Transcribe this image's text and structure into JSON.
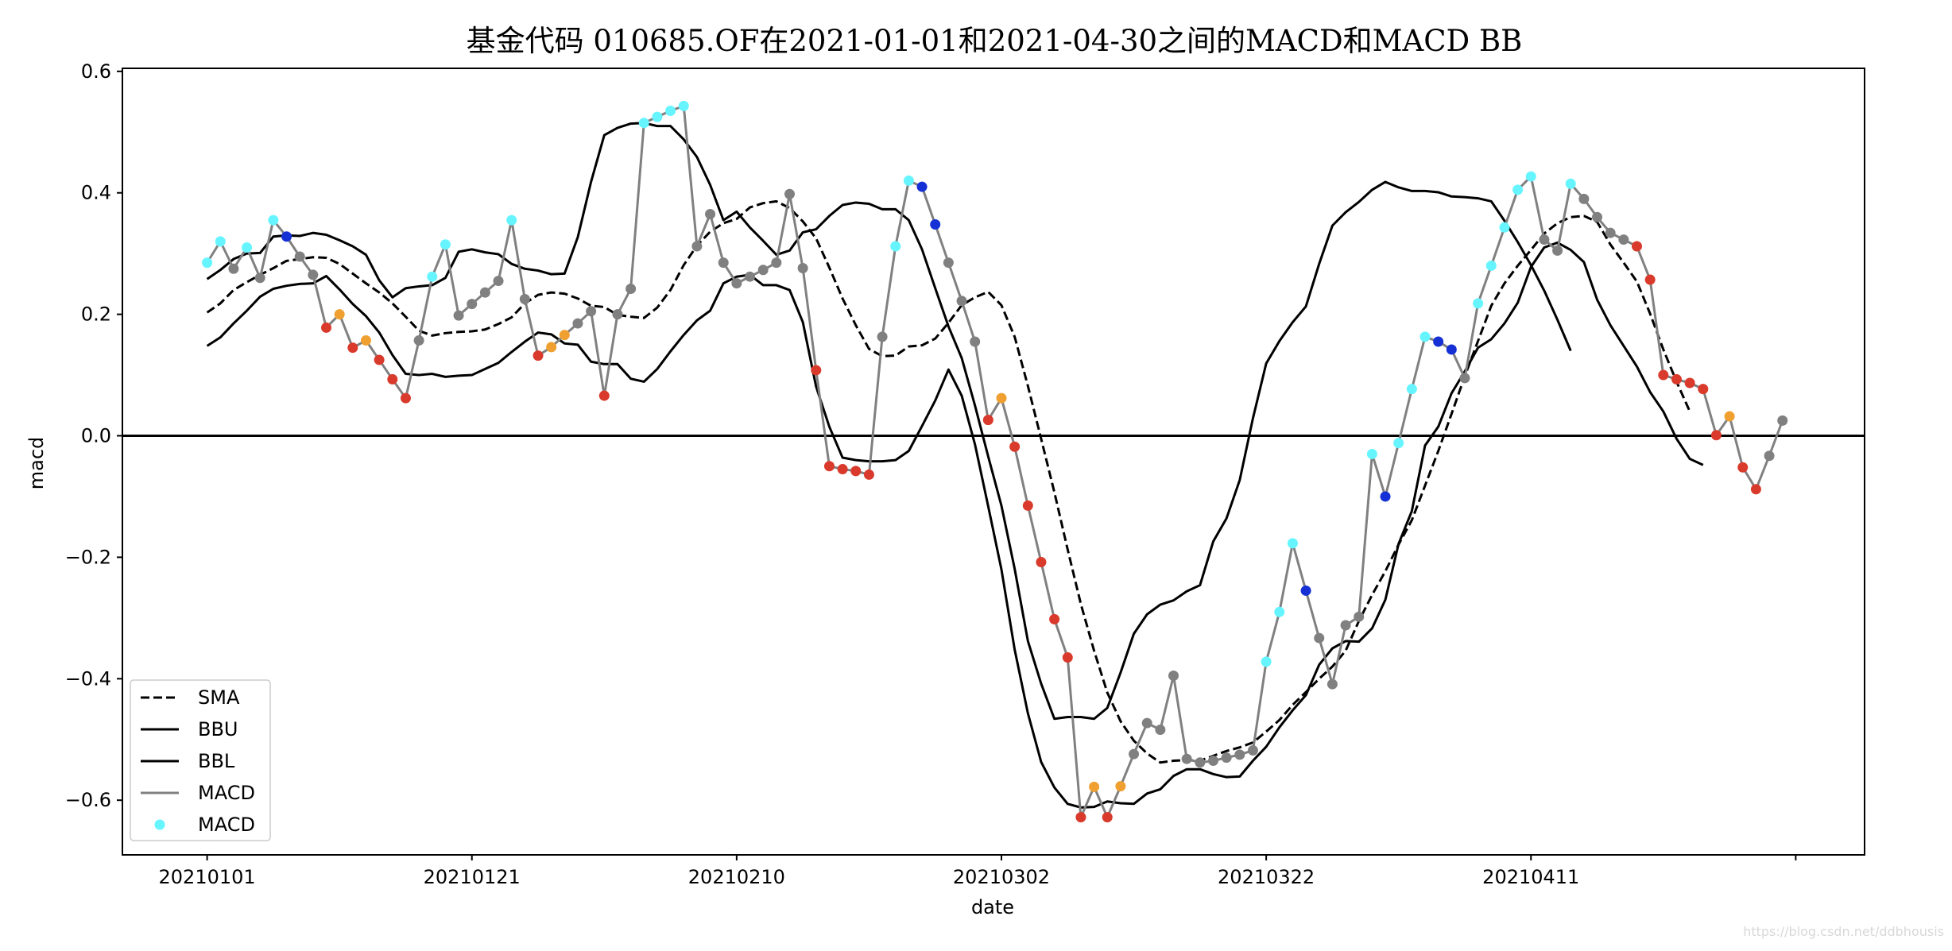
{
  "chart_data": {
    "type": "line",
    "title": "基金代码 010685.OF在2021-01-01和2021-04-30之间的MACD和MACD BB",
    "xlabel": "date",
    "ylabel": "macd",
    "xtick_labels": [
      "20210101",
      "20210121",
      "20210210",
      "20210302",
      "20210322",
      "20210411"
    ],
    "xtick_positions": [
      0,
      20,
      40,
      60,
      80,
      100,
      120
    ],
    "ytick_labels": [
      "0.6",
      "0.4",
      "0.2",
      "0.0",
      "−0.2",
      "−0.4",
      "−0.6"
    ],
    "ytick_values": [
      0.6,
      0.4,
      0.2,
      0.0,
      -0.2,
      -0.4,
      -0.6
    ],
    "xlim": [
      -6.4,
      125.2
    ],
    "ylim": [
      -0.69,
      0.605
    ],
    "zero_line": 0.0,
    "grid": false,
    "legend_position": "lower-left",
    "legend": [
      {
        "label": "SMA",
        "style": "dashed",
        "color": "#000000"
      },
      {
        "label": "BBU",
        "style": "solid",
        "color": "#000000"
      },
      {
        "label": "BBL",
        "style": "solid",
        "color": "#000000"
      },
      {
        "label": "MACD",
        "style": "solid",
        "color": "#808080"
      },
      {
        "label": "MACD",
        "style": "marker",
        "color": "#66f5ff"
      }
    ],
    "colors": {
      "sma": "#000000",
      "bbu": "#000000",
      "bbl": "#000000",
      "macd_line": "#808080",
      "cyan": "#66f5ff",
      "blue": "#1531d6",
      "red": "#d93a2b",
      "orange": "#f0a030",
      "gray": "#808080",
      "zero": "#000000"
    },
    "series": [
      {
        "name": "MACD",
        "values": [
          0.285,
          0.32,
          0.275,
          0.31,
          0.26,
          0.355,
          0.328,
          0.295,
          0.265,
          0.178,
          0.2,
          0.145,
          0.157,
          0.125,
          0.093,
          0.062,
          0.157,
          0.262,
          0.315,
          0.198,
          0.217,
          0.236,
          0.255,
          0.355,
          0.225,
          0.132,
          0.146,
          0.166,
          0.185,
          0.205,
          0.066,
          0.2,
          0.242,
          0.515,
          0.525,
          0.535,
          0.543,
          0.312,
          0.365,
          0.285,
          0.251,
          0.262,
          0.273,
          0.285,
          0.398,
          0.276,
          0.108,
          -0.05,
          -0.055,
          -0.058,
          -0.064,
          0.163,
          0.312,
          0.42,
          0.41,
          0.348,
          0.285,
          0.222,
          0.155,
          0.026,
          0.062,
          -0.018,
          -0.115,
          -0.208,
          -0.302,
          -0.365,
          -0.628,
          -0.578,
          -0.628,
          -0.577,
          -0.524,
          -0.473,
          -0.484,
          -0.395,
          -0.532,
          -0.538,
          -0.535,
          -0.53,
          -0.525,
          -0.518,
          -0.372,
          -0.29,
          -0.177,
          -0.255,
          -0.333,
          -0.409,
          -0.312,
          -0.298,
          -0.03,
          -0.1,
          -0.012,
          0.077,
          0.163,
          0.155,
          0.142,
          0.095,
          0.218,
          0.28,
          0.343,
          0.405,
          0.427,
          0.323,
          0.305,
          0.415,
          0.39,
          0.36,
          0.334,
          0.323,
          0.312,
          0.257,
          0.1,
          0.093,
          0.087,
          0.077,
          0.001,
          0.032,
          -0.052,
          -0.088,
          -0.033,
          0.025
        ],
        "marker_colors": [
          "cyan",
          "cyan",
          "gray",
          "cyan",
          "gray",
          "cyan",
          "blue",
          "gray",
          "gray",
          "red",
          "orange",
          "red",
          "orange",
          "red",
          "red",
          "red",
          "gray",
          "cyan",
          "cyan",
          "gray",
          "gray",
          "gray",
          "gray",
          "cyan",
          "gray",
          "red",
          "orange",
          "orange",
          "gray",
          "gray",
          "red",
          "gray",
          "gray",
          "cyan",
          "cyan",
          "cyan",
          "cyan",
          "gray",
          "gray",
          "gray",
          "gray",
          "gray",
          "gray",
          "gray",
          "gray",
          "gray",
          "red",
          "red",
          "red",
          "red",
          "red",
          "gray",
          "cyan",
          "cyan",
          "blue",
          "blue",
          "gray",
          "gray",
          "gray",
          "red",
          "orange",
          "red",
          "red",
          "red",
          "red",
          "red",
          "red",
          "orange",
          "red",
          "orange",
          "gray",
          "gray",
          "gray",
          "gray",
          "gray",
          "gray",
          "gray",
          "gray",
          "gray",
          "gray",
          "cyan",
          "cyan",
          "cyan",
          "blue",
          "gray",
          "gray",
          "gray",
          "gray",
          "cyan",
          "blue",
          "cyan",
          "cyan",
          "cyan",
          "blue",
          "blue",
          "gray",
          "cyan",
          "cyan",
          "cyan",
          "cyan",
          "cyan",
          "gray",
          "gray",
          "cyan",
          "gray",
          "gray",
          "gray",
          "gray",
          "red",
          "red",
          "red",
          "red",
          "red",
          "red",
          "red",
          "orange",
          "red",
          "red",
          "gray",
          "gray"
        ]
      },
      {
        "name": "SMA",
        "values": [
          0.203,
          0.218,
          0.24,
          0.253,
          0.265,
          0.276,
          0.288,
          0.291,
          0.294,
          0.293,
          0.283,
          0.267,
          0.251,
          0.236,
          0.218,
          0.196,
          0.173,
          0.165,
          0.169,
          0.171,
          0.172,
          0.175,
          0.184,
          0.195,
          0.218,
          0.232,
          0.236,
          0.234,
          0.226,
          0.214,
          0.212,
          0.199,
          0.196,
          0.194,
          0.211,
          0.24,
          0.281,
          0.313,
          0.336,
          0.35,
          0.357,
          0.376,
          0.383,
          0.386,
          0.375,
          0.353,
          0.325,
          0.277,
          0.226,
          0.182,
          0.143,
          0.131,
          0.132,
          0.147,
          0.149,
          0.16,
          0.186,
          0.215,
          0.228,
          0.237,
          0.215,
          0.163,
          0.082,
          -0.005,
          -0.093,
          -0.187,
          -0.277,
          -0.354,
          -0.423,
          -0.47,
          -0.502,
          -0.523,
          -0.538,
          -0.535,
          -0.534,
          -0.535,
          -0.527,
          -0.519,
          -0.513,
          -0.505,
          -0.487,
          -0.468,
          -0.443,
          -0.422,
          -0.4,
          -0.38,
          -0.354,
          -0.305,
          -0.262,
          -0.223,
          -0.179,
          -0.139,
          -0.082,
          -0.025,
          0.036,
          0.098,
          0.156,
          0.214,
          0.251,
          0.28,
          0.306,
          0.333,
          0.35,
          0.36,
          0.362,
          0.352,
          0.315,
          0.285,
          0.254,
          0.201,
          0.142,
          0.089,
          0.04
        ]
      },
      {
        "name": "BBU",
        "values": [
          0.258,
          0.273,
          0.291,
          0.3,
          0.301,
          0.328,
          0.33,
          0.329,
          0.334,
          0.331,
          0.322,
          0.312,
          0.298,
          0.256,
          0.228,
          0.243,
          0.246,
          0.248,
          0.26,
          0.303,
          0.307,
          0.302,
          0.299,
          0.283,
          0.275,
          0.272,
          0.266,
          0.267,
          0.327,
          0.418,
          0.495,
          0.507,
          0.514,
          0.515,
          0.51,
          0.51,
          0.488,
          0.459,
          0.413,
          0.355,
          0.369,
          0.343,
          0.321,
          0.298,
          0.305,
          0.335,
          0.34,
          0.362,
          0.38,
          0.384,
          0.382,
          0.373,
          0.373,
          0.355,
          0.307,
          0.243,
          0.18,
          0.128,
          0.05,
          -0.034,
          -0.115,
          -0.219,
          -0.338,
          -0.408,
          -0.466,
          -0.463,
          -0.463,
          -0.466,
          -0.448,
          -0.39,
          -0.326,
          -0.294,
          -0.278,
          -0.271,
          -0.256,
          -0.246,
          -0.174,
          -0.136,
          -0.073,
          0.029,
          0.119,
          0.156,
          0.187,
          0.213,
          0.283,
          0.346,
          0.368,
          0.385,
          0.405,
          0.418,
          0.409,
          0.403,
          0.403,
          0.401,
          0.394,
          0.393,
          0.391,
          0.386,
          0.354,
          0.319,
          0.281,
          0.239,
          0.191,
          0.14
        ]
      },
      {
        "name": "BBL",
        "values": [
          0.148,
          0.162,
          0.185,
          0.206,
          0.229,
          0.242,
          0.247,
          0.25,
          0.251,
          0.263,
          0.241,
          0.217,
          0.197,
          0.17,
          0.133,
          0.102,
          0.1,
          0.102,
          0.097,
          0.099,
          0.1,
          0.11,
          0.12,
          0.138,
          0.155,
          0.17,
          0.167,
          0.152,
          0.15,
          0.122,
          0.118,
          0.118,
          0.094,
          0.089,
          0.11,
          0.139,
          0.166,
          0.19,
          0.206,
          0.251,
          0.262,
          0.265,
          0.248,
          0.248,
          0.24,
          0.187,
          0.081,
          0.015,
          -0.036,
          -0.04,
          -0.042,
          -0.042,
          -0.04,
          -0.025,
          0.016,
          0.058,
          0.109,
          0.066,
          -0.014,
          -0.116,
          -0.22,
          -0.352,
          -0.457,
          -0.537,
          -0.579,
          -0.606,
          -0.612,
          -0.611,
          -0.602,
          -0.605,
          -0.606,
          -0.589,
          -0.582,
          -0.56,
          -0.549,
          -0.549,
          -0.557,
          -0.562,
          -0.561,
          -0.535,
          -0.512,
          -0.48,
          -0.452,
          -0.427,
          -0.377,
          -0.35,
          -0.338,
          -0.339,
          -0.317,
          -0.27,
          -0.178,
          -0.124,
          -0.016,
          0.015,
          0.07,
          0.106,
          0.145,
          0.159,
          0.185,
          0.219,
          0.278,
          0.31,
          0.318,
          0.306,
          0.286,
          0.224,
          0.182,
          0.148,
          0.114,
          0.072,
          0.04,
          -0.005,
          -0.038,
          -0.048
        ]
      }
    ]
  },
  "watermark": "https://blog.csdn.net/ddbhousis"
}
